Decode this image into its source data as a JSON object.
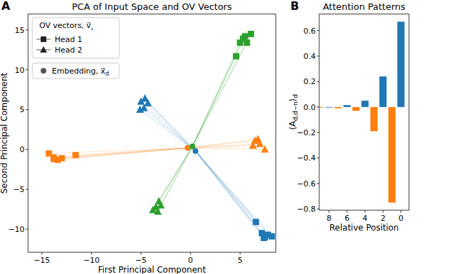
{
  "chart_data": [
    {
      "type": "scatter",
      "panel_label": "A",
      "title": "PCA of Input Space and OV Vectors",
      "x_label": "First Principal Component",
      "y_label": "Second Principal Component",
      "xlim": [
        -16.4,
        8.6
      ],
      "ylim": [
        -12.9,
        17
      ],
      "xticks": [
        {
          "value": -15,
          "label": "−15"
        },
        {
          "value": -10,
          "label": "−10"
        },
        {
          "value": -5,
          "label": "−5"
        },
        0,
        5
      ],
      "yticks": [
        {
          "value": -10,
          "label": "−10"
        },
        {
          "value": -5,
          "label": "−5"
        },
        0,
        5,
        10,
        15
      ],
      "grid": false,
      "legend": "upper left",
      "legend_title": "OV vectors, v⃗ₛ",
      "series": [
        {
          "name": "Head 1",
          "marker": "square",
          "x": [
            4.6,
            5.0,
            5.3,
            5.7,
            6.1,
            5.5,
            -14.3,
            -13.8,
            -13.4,
            -13.0,
            -11.6,
            -13.8,
            6.6,
            7.2,
            7.5,
            7.8,
            8.2,
            7.4
          ],
          "y": [
            11.7,
            13.4,
            13.9,
            13.4,
            14.5,
            14.2,
            -0.5,
            -1.0,
            -1.3,
            -1.1,
            -0.7,
            -1.2,
            -9.1,
            -10.5,
            -11.0,
            -10.7,
            -10.9,
            -11.1
          ],
          "colors": [
            "#2ca02c",
            "#2ca02c",
            "#2ca02c",
            "#2ca02c",
            "#2ca02c",
            "#2ca02c",
            "#ff7f0e",
            "#ff7f0e",
            "#ff7f0e",
            "#ff7f0e",
            "#ff7f0e",
            "#ff7f0e",
            "#1f77b4",
            "#1f77b4",
            "#1f77b4",
            "#1f77b4",
            "#1f77b4",
            "#1f77b4"
          ]
        },
        {
          "name": "Head 2",
          "marker": "triangle",
          "x": [
            -5.0,
            -4.7,
            -4.3,
            -5.1,
            -4.6,
            6.5,
            7.0,
            6.8,
            7.5,
            6.3,
            -3.2,
            -3.5,
            -3.8,
            -3.0,
            -3.3
          ],
          "y": [
            6.0,
            5.2,
            5.8,
            5.0,
            6.4,
            1.1,
            0.7,
            1.3,
            0.0,
            0.5,
            -6.5,
            -7.2,
            -7.6,
            -7.0,
            -7.8
          ],
          "colors": [
            "#1f77b4",
            "#1f77b4",
            "#1f77b4",
            "#1f77b4",
            "#1f77b4",
            "#ff7f0e",
            "#ff7f0e",
            "#ff7f0e",
            "#ff7f0e",
            "#ff7f0e",
            "#2ca02c",
            "#2ca02c",
            "#2ca02c",
            "#2ca02c",
            "#2ca02c"
          ]
        },
        {
          "name": "Embedding, x⃗d",
          "marker": "circle",
          "x": [
            -0.3,
            0.2,
            0.5
          ],
          "y": [
            0.2,
            0.4,
            -0.2
          ],
          "colors": [
            "#ff7f0e",
            "#2ca02c",
            "#1f77b4"
          ]
        }
      ]
    },
    {
      "type": "bar",
      "panel_label": "B",
      "title": "Attention Patterns",
      "x_label": "Relative Position",
      "y_label": "⟨Ad,d−n⟩d",
      "xlim": [
        9.1,
        -0.9
      ],
      "ylim": [
        -0.81,
        0.73
      ],
      "xticks": [
        8,
        6,
        4,
        2,
        0
      ],
      "yticks": [
        {
          "value": -0.8,
          "label": "−0.8"
        },
        {
          "value": -0.6,
          "label": "−0.6"
        },
        {
          "value": -0.4,
          "label": "−0.4"
        },
        {
          "value": -0.2,
          "label": "−0.2"
        },
        {
          "value": 0,
          "label": "0.0"
        },
        0.2,
        0.4,
        0.6
      ],
      "grid": false,
      "series": [
        {
          "color": "#1f77b4",
          "x": [
            0,
            2,
            4,
            6,
            8
          ],
          "values": [
            0.67,
            0.24,
            0.05,
            0.015,
            -0.005
          ]
        },
        {
          "color": "#ff7f0e",
          "x": [
            1,
            3,
            5,
            7,
            9
          ],
          "values": [
            -0.75,
            -0.19,
            -0.03,
            -0.01,
            -0.005
          ]
        }
      ]
    }
  ]
}
